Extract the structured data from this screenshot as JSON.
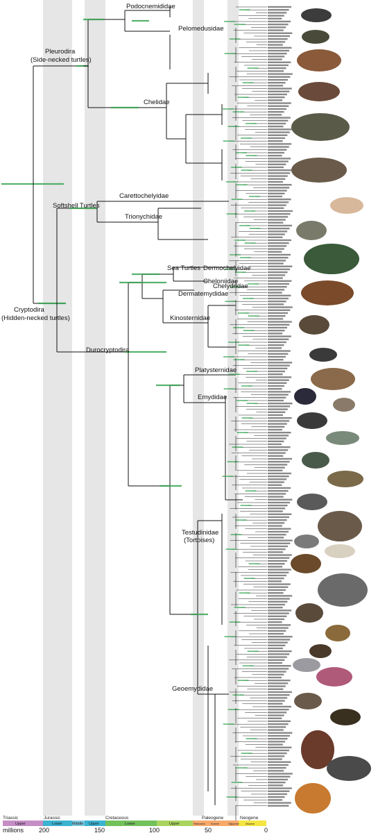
{
  "clades": {
    "podocnemididae": "Podocnemididae",
    "pelomedusidae": "Pelomedusidae",
    "pleurodira": "Pleurodira",
    "pleurodira_sub": "(Side-necked turtles)",
    "chelidae": "Chelidae",
    "softshell": "Softshell Turtles",
    "carettochelyidae": "Carettochelyidae",
    "trionychidae": "Trionychidae",
    "sea_turtles": "Sea Turtles",
    "dermochelyidae": "Dermochelyidae",
    "cheloniidae": "Cheloniidae",
    "chelydridae": "Chelydridae",
    "dermatemydidae": "Dermatemydidae",
    "kinosternidae": "Kinosternidae",
    "cryptodira": "Cryptodira",
    "cryptodira_sub": "(Hidden-necked turtles)",
    "durocryptodira": "Durocryptodira",
    "platysternidae": "Platysternidae",
    "emydidae": "Emydidae",
    "testudinidae": "Testudinidae",
    "testudinidae_sub": "(Tortoises)",
    "geoemydidae": "Geoemydidae"
  },
  "timescale": {
    "periods": [
      "Triassic",
      "Jurassic",
      "Cretaceous",
      "Paleogene",
      "Neogene"
    ],
    "epochs": [
      "Upper",
      "Lower",
      "Middle",
      "Upper",
      "Lower",
      "Upper",
      "Paleocene",
      "Eocene",
      "Oligocene",
      "Miocene"
    ],
    "unit": "millions",
    "ticks": [
      "200",
      "150",
      "100",
      "50",
      "0"
    ],
    "colors": {
      "triassic": "#c58dc5",
      "jurassic": "#3bb3d1",
      "jurassic_middle": "#7cc8df",
      "cretaceous": "#73c15b",
      "cretaceous_upper": "#a9d45e",
      "paleogene": "#f7a96a",
      "neogene": "#f5e542",
      "branch_green": "#3aa655",
      "shading": "#e6e6e6"
    }
  },
  "photos": [
    "photo-podocnemis",
    "photo-pelomedusa",
    "photo-matamata",
    "photo-chelid-a",
    "photo-chelid-b",
    "photo-chelid-c",
    "photo-carettochelys",
    "photo-softshell",
    "photo-sea-turtle",
    "photo-snapping",
    "photo-mud-turtle",
    "photo-musk-turtle",
    "photo-bigheaded",
    "photo-spotted",
    "photo-box-turtle",
    "photo-blandings",
    "photo-map-turtle",
    "photo-painted",
    "photo-slider",
    "photo-emydid",
    "photo-gopher",
    "photo-pancake",
    "photo-leopard",
    "photo-star",
    "photo-galapagos",
    "photo-hingeback",
    "photo-radiated",
    "photo-spider",
    "photo-pyxis",
    "photo-cuora",
    "photo-pink",
    "photo-batagur",
    "photo-pond",
    "photo-leaf",
    "photo-cyclemys",
    "photo-boxturtle-asian"
  ]
}
